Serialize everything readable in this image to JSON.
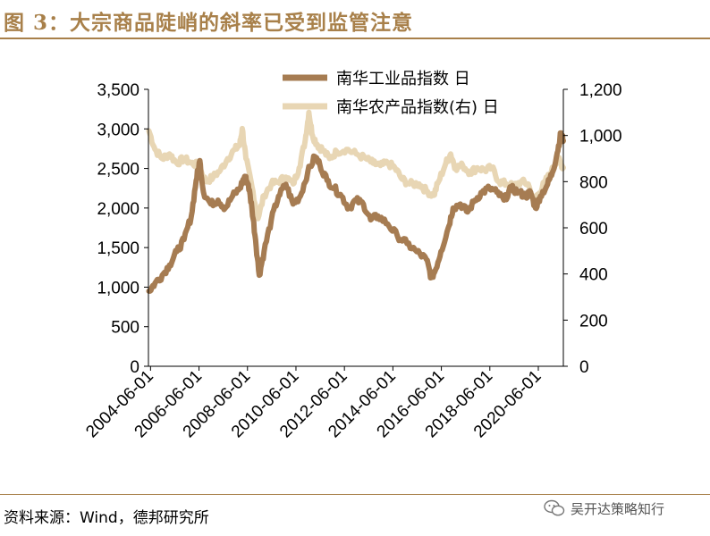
{
  "figure": {
    "title": "图 3：大宗商品陡峭的斜率已受到监管注意",
    "source": "资料来源：Wind，德邦研究所",
    "watermark": "吴开达策略知行"
  },
  "colors": {
    "brand": "#A8804A",
    "industrial": "#A67C52",
    "agri": "#E8D6B4",
    "axis": "#000000"
  },
  "chart_data": {
    "type": "line",
    "title": "图 3：大宗商品陡峭的斜率已受到监管注意",
    "xlabel": "",
    "ylabel": "",
    "y2label": "",
    "x_tick_labels": [
      "2004-06-01",
      "2006-06-01",
      "2008-06-01",
      "2010-06-01",
      "2012-06-01",
      "2014-06-01",
      "2016-06-01",
      "2018-06-01",
      "2020-06-01"
    ],
    "x_range": [
      2004.33,
      2021.45
    ],
    "ylim": [
      0,
      3500
    ],
    "y_ticks": [
      "0",
      "500",
      "1,000",
      "1,500",
      "2,000",
      "2,500",
      "3,000",
      "3,500"
    ],
    "y2lim": [
      0,
      1200
    ],
    "y2_ticks": [
      "0",
      "200",
      "400",
      "600",
      "800",
      "1,000",
      "1,200"
    ],
    "legend_position": "top-right",
    "series": [
      {
        "name": "南华工业品指数 日",
        "axis": "left",
        "color": "#A67C52",
        "points": [
          [
            2004.35,
            950
          ],
          [
            2004.6,
            1050
          ],
          [
            2004.9,
            1150
          ],
          [
            2005.2,
            1280
          ],
          [
            2005.5,
            1450
          ],
          [
            2005.8,
            1600
          ],
          [
            2006.1,
            1900
          ],
          [
            2006.3,
            2350
          ],
          [
            2006.45,
            2600
          ],
          [
            2006.6,
            2200
          ],
          [
            2006.9,
            2050
          ],
          [
            2007.2,
            2100
          ],
          [
            2007.5,
            2000
          ],
          [
            2007.8,
            2150
          ],
          [
            2008.1,
            2250
          ],
          [
            2008.3,
            2400
          ],
          [
            2008.45,
            2300
          ],
          [
            2008.6,
            2000
          ],
          [
            2008.75,
            1600
          ],
          [
            2008.9,
            1150
          ],
          [
            2009.1,
            1450
          ],
          [
            2009.4,
            1850
          ],
          [
            2009.7,
            2150
          ],
          [
            2010.0,
            2300
          ],
          [
            2010.3,
            2050
          ],
          [
            2010.6,
            2150
          ],
          [
            2010.9,
            2450
          ],
          [
            2011.2,
            2650
          ],
          [
            2011.4,
            2550
          ],
          [
            2011.7,
            2350
          ],
          [
            2012.0,
            2250
          ],
          [
            2012.3,
            2150
          ],
          [
            2012.6,
            2000
          ],
          [
            2012.9,
            2100
          ],
          [
            2013.2,
            2050
          ],
          [
            2013.5,
            1850
          ],
          [
            2013.8,
            1900
          ],
          [
            2014.2,
            1800
          ],
          [
            2014.6,
            1650
          ],
          [
            2015.0,
            1550
          ],
          [
            2015.4,
            1450
          ],
          [
            2015.8,
            1350
          ],
          [
            2016.0,
            1120
          ],
          [
            2016.15,
            1200
          ],
          [
            2016.4,
            1450
          ],
          [
            2016.7,
            1750
          ],
          [
            2016.9,
            2000
          ],
          [
            2017.2,
            2050
          ],
          [
            2017.5,
            1950
          ],
          [
            2017.8,
            2100
          ],
          [
            2018.1,
            2200
          ],
          [
            2018.4,
            2250
          ],
          [
            2018.7,
            2200
          ],
          [
            2019.0,
            2100
          ],
          [
            2019.3,
            2250
          ],
          [
            2019.6,
            2200
          ],
          [
            2019.9,
            2150
          ],
          [
            2020.1,
            2200
          ],
          [
            2020.3,
            2000
          ],
          [
            2020.5,
            2150
          ],
          [
            2020.8,
            2300
          ],
          [
            2021.0,
            2450
          ],
          [
            2021.2,
            2700
          ],
          [
            2021.35,
            2950
          ],
          [
            2021.45,
            2850
          ]
        ]
      },
      {
        "name": "南华农产品指数(右) 日",
        "axis": "right",
        "color": "#E8D6B4",
        "points": [
          [
            2004.35,
            1020
          ],
          [
            2004.6,
            940
          ],
          [
            2004.9,
            900
          ],
          [
            2005.2,
            920
          ],
          [
            2005.5,
            880
          ],
          [
            2005.8,
            900
          ],
          [
            2006.1,
            880
          ],
          [
            2006.4,
            870
          ],
          [
            2006.7,
            800
          ],
          [
            2007.0,
            820
          ],
          [
            2007.3,
            850
          ],
          [
            2007.6,
            900
          ],
          [
            2007.9,
            940
          ],
          [
            2008.1,
            960
          ],
          [
            2008.2,
            1030
          ],
          [
            2008.35,
            900
          ],
          [
            2008.6,
            780
          ],
          [
            2008.85,
            640
          ],
          [
            2009.1,
            740
          ],
          [
            2009.4,
            790
          ],
          [
            2009.7,
            800
          ],
          [
            2010.0,
            820
          ],
          [
            2010.3,
            790
          ],
          [
            2010.55,
            860
          ],
          [
            2010.8,
            980
          ],
          [
            2010.95,
            1100
          ],
          [
            2011.1,
            1000
          ],
          [
            2011.3,
            960
          ],
          [
            2011.5,
            940
          ],
          [
            2011.8,
            900
          ],
          [
            2012.1,
            930
          ],
          [
            2012.5,
            940
          ],
          [
            2012.9,
            920
          ],
          [
            2013.3,
            900
          ],
          [
            2013.6,
            880
          ],
          [
            2013.9,
            870
          ],
          [
            2014.2,
            880
          ],
          [
            2014.5,
            860
          ],
          [
            2014.8,
            810
          ],
          [
            2015.1,
            790
          ],
          [
            2015.5,
            790
          ],
          [
            2015.8,
            760
          ],
          [
            2016.1,
            740
          ],
          [
            2016.3,
            800
          ],
          [
            2016.6,
            880
          ],
          [
            2016.8,
            920
          ],
          [
            2017.0,
            860
          ],
          [
            2017.3,
            870
          ],
          [
            2017.6,
            840
          ],
          [
            2017.9,
            860
          ],
          [
            2018.2,
            850
          ],
          [
            2018.5,
            860
          ],
          [
            2018.8,
            800
          ],
          [
            2019.1,
            790
          ],
          [
            2019.4,
            780
          ],
          [
            2019.7,
            800
          ],
          [
            2020.0,
            790
          ],
          [
            2020.2,
            720
          ],
          [
            2020.45,
            750
          ],
          [
            2020.7,
            800
          ],
          [
            2020.95,
            840
          ],
          [
            2021.2,
            900
          ],
          [
            2021.35,
            880
          ],
          [
            2021.45,
            860
          ]
        ]
      }
    ]
  }
}
